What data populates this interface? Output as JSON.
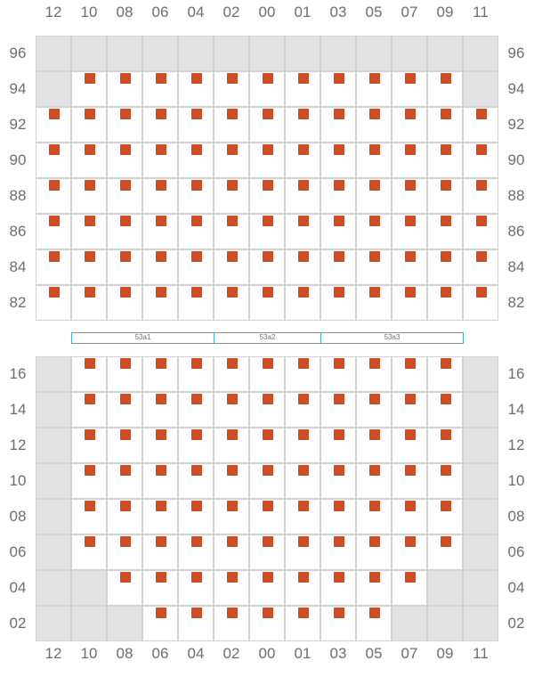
{
  "colors": {
    "seat": "#cc4d26",
    "blocked": "#e3e3e5",
    "gridline": "#d3d3d3",
    "section_border": "#3ab0d6",
    "label": "#6f6f6f"
  },
  "columns": [
    "12",
    "10",
    "08",
    "06",
    "04",
    "02",
    "00",
    "01",
    "03",
    "05",
    "07",
    "09",
    "11"
  ],
  "upper_block": {
    "rows": [
      "96",
      "94",
      "92",
      "90",
      "88",
      "86",
      "84",
      "82"
    ],
    "blocked": [
      [
        0,
        1,
        2,
        3,
        4,
        5,
        6,
        7,
        8,
        9,
        10,
        11,
        12
      ],
      [
        0,
        12
      ],
      [],
      [],
      [],
      [],
      [],
      []
    ],
    "seats": [
      [],
      [
        1,
        2,
        3,
        4,
        5,
        6,
        7,
        8,
        9,
        10,
        11
      ],
      [
        0,
        1,
        2,
        3,
        4,
        5,
        6,
        7,
        8,
        9,
        10,
        11,
        12
      ],
      [
        0,
        1,
        2,
        3,
        4,
        5,
        6,
        7,
        8,
        9,
        10,
        11,
        12
      ],
      [
        0,
        1,
        2,
        3,
        4,
        5,
        6,
        7,
        8,
        9,
        10,
        11,
        12
      ],
      [
        0,
        1,
        2,
        3,
        4,
        5,
        6,
        7,
        8,
        9,
        10,
        11,
        12
      ],
      [
        0,
        1,
        2,
        3,
        4,
        5,
        6,
        7,
        8,
        9,
        10,
        11,
        12
      ],
      [
        0,
        1,
        2,
        3,
        4,
        5,
        6,
        7,
        8,
        9,
        10,
        11,
        12
      ]
    ]
  },
  "sections": [
    {
      "label": "53a1",
      "col_start": 1,
      "col_end": 5
    },
    {
      "label": "53a2",
      "col_start": 5,
      "col_end": 8
    },
    {
      "label": "53a3",
      "col_start": 8,
      "col_end": 12
    }
  ],
  "lower_block": {
    "rows": [
      "16",
      "14",
      "12",
      "10",
      "08",
      "06",
      "04",
      "02"
    ],
    "blocked": [
      [
        0,
        12
      ],
      [
        0,
        12
      ],
      [
        0,
        12
      ],
      [
        0,
        12
      ],
      [
        0,
        12
      ],
      [
        0,
        12
      ],
      [
        0,
        1,
        11,
        12
      ],
      [
        0,
        1,
        2,
        10,
        11,
        12
      ]
    ],
    "seats": [
      [
        1,
        2,
        3,
        4,
        5,
        6,
        7,
        8,
        9,
        10,
        11
      ],
      [
        1,
        2,
        3,
        4,
        5,
        6,
        7,
        8,
        9,
        10,
        11
      ],
      [
        1,
        2,
        3,
        4,
        5,
        6,
        7,
        8,
        9,
        10,
        11
      ],
      [
        1,
        2,
        3,
        4,
        5,
        6,
        7,
        8,
        9,
        10,
        11
      ],
      [
        1,
        2,
        3,
        4,
        5,
        6,
        7,
        8,
        9,
        10,
        11
      ],
      [
        1,
        2,
        3,
        4,
        5,
        6,
        7,
        8,
        9,
        10,
        11
      ],
      [
        2,
        3,
        4,
        5,
        6,
        7,
        8,
        9,
        10
      ],
      [
        3,
        4,
        5,
        6,
        7,
        8,
        9
      ]
    ]
  }
}
